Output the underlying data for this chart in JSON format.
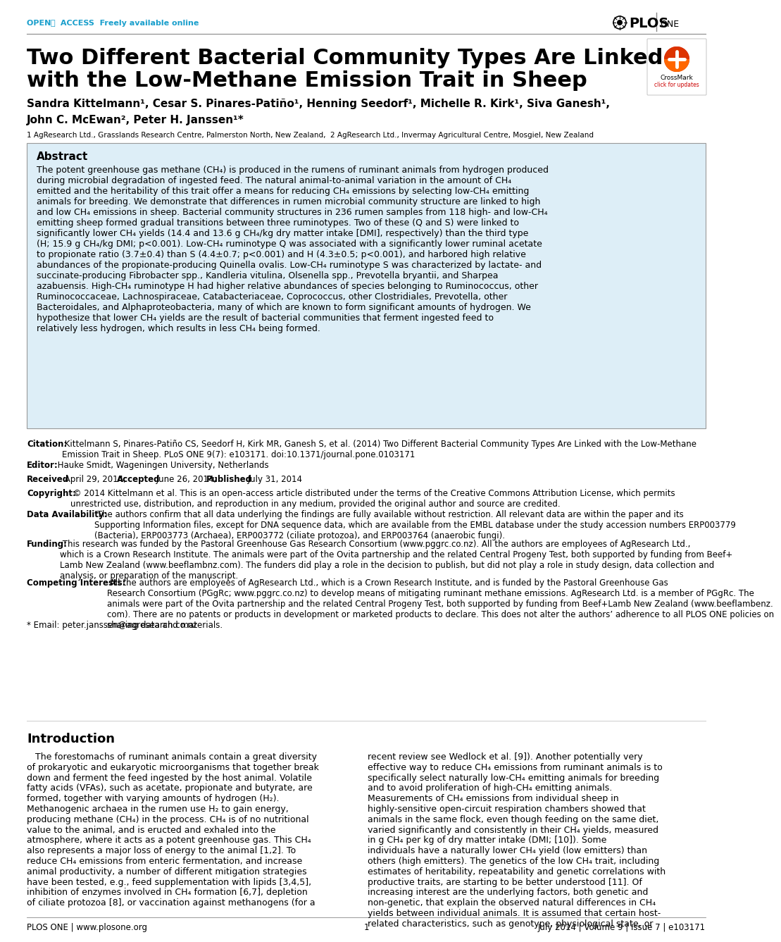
{
  "bg_color": "#ffffff",
  "open_access_color": "#1a9fcc",
  "abstract_bg": "#ddeef7",
  "title_line1": "Two Different Bacterial Community Types Are Linked",
  "title_line2": "with the Low-Methane Emission Trait in Sheep",
  "authors_line1": "Sandra Kittelmann¹, Cesar S. Pinares-Patiño¹, Henning Seedorf¹, Michelle R. Kirk¹, Siva Ganesh¹,",
  "authors_line2": "John C. McEwan², Peter H. Janssen¹*",
  "affiliation": "1 AgResearch Ltd., Grasslands Research Centre, Palmerston North, New Zealand,  2 AgResearch Ltd., Invermay Agricultural Centre, Mosgiel, New Zealand",
  "abstract_title": "Abstract",
  "abstract_text": "The potent greenhouse gas methane (CH₄) is produced in the rumens of ruminant animals from hydrogen produced during microbial degradation of ingested feed. The natural animal-to-animal variation in the amount of CH₄ emitted and the heritability of this trait offer a means for reducing CH₄ emissions by selecting low-CH₄ emitting animals for breeding. We demonstrate that differences in rumen microbial community structure are linked to high and low CH₄ emissions in sheep. Bacterial community structures in 236 rumen samples from 118 high- and low-CH₄ emitting sheep formed gradual transitions between three ruminotypes. Two of these (Q and S) were linked to significantly lower CH₄ yields (14.4 and 13.6 g CH₄/kg dry matter intake [DMI], respectively) than the third type (H; 15.9 g CH₄/kg DMI; p<0.001). Low-CH₄ ruminotype Q was associated with a significantly lower ruminal acetate to propionate ratio (3.7±0.4) than S (4.4±0.7; p<0.001) and H (4.3±0.5; p<0.001), and harbored high relative abundances of the propionate-producing Quinella ovalis. Low-CH₄ ruminotype S was characterized by lactate- and succinate-producing Fibrobacter spp., Kandleria vitulina, Olsenella spp., Prevotella bryantii, and Sharpea azabuensis. High-CH₄ ruminotype H had higher relative abundances of species belonging to Ruminococcus, other Ruminococcaceae, Lachnospiraceae, Catabacteriaceae, Coprococcus, other Clostridiales, Prevotella, other Bacteroidales, and Alphaproteobacteria, many of which are known to form significant amounts of hydrogen. We hypothesize that lower CH₄ yields are the result of bacterial communities that ferment ingested feed to relatively less hydrogen, which results in less CH₄ being formed.",
  "citation_text": " Kittelmann S, Pinares-Patiño CS, Seedorf H, Kirk MR, Ganesh S, et al. (2014) Two Different Bacterial Community Types Are Linked with the Low-Methane\nEmission Trait in Sheep. PLoS ONE 9(7): e103171. doi:10.1371/journal.pone.0103171",
  "editor_text": " Hauke Smidt, Wageningen University, Netherlands",
  "received_text": " April 29, 2014;",
  "accepted_text": " June 26, 2014;",
  "published_text": " July 31, 2014",
  "copyright_text": " © 2014 Kittelmann et al. This is an open-access article distributed under the terms of the Creative Commons Attribution License, which permits\nunrestricted use, distribution, and reproduction in any medium, provided the original author and source are credited.",
  "data_avail_text": " The authors confirm that all data underlying the findings are fully available without restriction. All relevant data are within the paper and its\nSupporting Information files, except for DNA sequence data, which are available from the EMBL database under the study accession numbers ERP003779\n(Bacteria), ERP003773 (Archaea), ERP003772 (ciliate protozoa), and ERP003764 (anaerobic fungi).",
  "funding_text": " This research was funded by the Pastoral Greenhouse Gas Research Consortium (www.pggrc.co.nz). All the authors are employees of AgResearch Ltd.,\nwhich is a Crown Research Institute. The animals were part of the Ovita partnership and the related Central Progeny Test, both supported by funding from Beef+\nLamb New Zealand (www.beeflambnz.com). The funders did play a role in the decision to publish, but did not play a role in study design, data collection and\nanalysis, or preparation of the manuscript.",
  "competing_text": " All the authors are employees of AgResearch Ltd., which is a Crown Research Institute, and is funded by the Pastoral Greenhouse Gas\nResearch Consortium (PGgRc; www.pggrc.co.nz) to develop means of mitigating ruminant methane emissions. AgResearch Ltd. is a member of PGgRc. The\nanimals were part of the Ovita partnership and the related Central Progeny Test, both supported by funding from Beef+Lamb New Zealand (www.beeflambenz.\ncom). There are no patents or products in development or marketed products to declare. This does not alter the authors’ adherence to all PLOS ONE policies on\nsharing data and materials.",
  "email_text": "* Email: peter.janssen@agresearch.co.nz",
  "intro_title": "Introduction",
  "intro_col1_lines": [
    "   The forestomachs of ruminant animals contain a great diversity",
    "of prokaryotic and eukaryotic microorganisms that together break",
    "down and ferment the feed ingested by the host animal. Volatile",
    "fatty acids (VFAs), such as acetate, propionate and butyrate, are",
    "formed, together with varying amounts of hydrogen (H₂).",
    "Methanogenic archaea in the rumen use H₂ to gain energy,",
    "producing methane (CH₄) in the process. CH₄ is of no nutritional",
    "value to the animal, and is eructed and exhaled into the",
    "atmosphere, where it acts as a potent greenhouse gas. This CH₄",
    "also represents a major loss of energy to the animal [1,2]. To",
    "reduce CH₄ emissions from enteric fermentation, and increase",
    "animal productivity, a number of different mitigation strategies",
    "have been tested, e.g., feed supplementation with lipids [3,4,5],",
    "inhibition of enzymes involved in CH₄ formation [6,7], depletion",
    "of ciliate protozoa [8], or vaccination against methanogens (for a"
  ],
  "intro_col2_lines": [
    "recent review see Wedlock et al. [9]). Another potentially very",
    "effective way to reduce CH₄ emissions from ruminant animals is to",
    "specifically select naturally low-CH₄ emitting animals for breeding",
    "and to avoid proliferation of high-CH₄ emitting animals.",
    "Measurements of CH₄ emissions from individual sheep in",
    "highly-sensitive open-circuit respiration chambers showed that",
    "animals in the same flock, even though feeding on the same diet,",
    "varied significantly and consistently in their CH₄ yields, measured",
    "in g CH₄ per kg of dry matter intake (DMI; [10]). Some",
    "individuals have a naturally lower CH₄ yield (low emitters) than",
    "others (high emitters). The genetics of the low CH₄ trait, including",
    "estimates of heritability, repeatability and genetic correlations with",
    "productive traits, are starting to be better understood [11]. Of",
    "increasing interest are the underlying factors, both genetic and",
    "non-genetic, that explain the observed natural differences in CH₄",
    "yields between individual animals. It is assumed that certain host-",
    "related characteristics, such as genotype, physiological state, or"
  ],
  "footer_left": "PLOS ONE | www.plosone.org",
  "footer_center": "1",
  "footer_right": "July 2014 | Volume 9 | Issue 7 | e103171"
}
